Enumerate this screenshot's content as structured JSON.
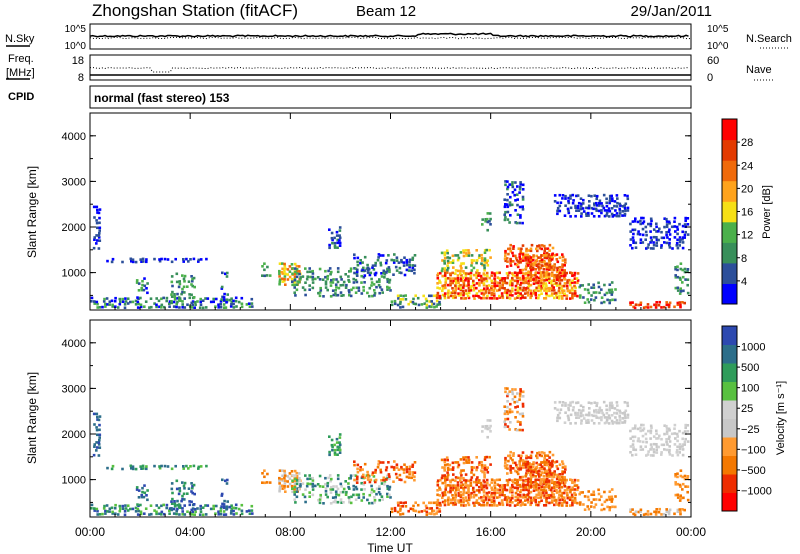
{
  "header": {
    "title": "Zhongshan Station (fitACF)",
    "beam": "Beam 12",
    "date": "29/Jan/2011"
  },
  "top_panels": {
    "nsky_label": "N.Sky",
    "nsky_ticks": [
      "10^5",
      "10^0"
    ],
    "nsearch_label": "N.Search",
    "nsearch_ticks": [
      "10^5",
      "10^0"
    ],
    "freq_label_1": "Freq.",
    "freq_label_2": "[MHz]",
    "freq_ticks": [
      "18",
      "8"
    ],
    "nave_label": "Nave",
    "nave_ticks": [
      "60",
      "0"
    ],
    "cpid_label": "CPID",
    "cpid_text": "normal (fast stereo) 153"
  },
  "colors": {
    "power_scale": [
      "#0000ff",
      "#2c4f9a",
      "#388f5a",
      "#4bb04b",
      "#f6e016",
      "#ffa31c",
      "#f06a0a",
      "#e33a00",
      "#ff0000"
    ],
    "velocity_scale": [
      "#ff0000",
      "#ee2c00",
      "#f47800",
      "#ff9a30",
      "#c8c8c8",
      "#d0d0d0",
      "#58c040",
      "#2f9c5a",
      "#2c6e8a",
      "#2d49b0"
    ]
  },
  "chart_data": [
    {
      "type": "heatmap",
      "name": "power",
      "ylabel": "Slant Range [km]",
      "yticks": [
        "4000",
        "3000",
        "2000",
        "1000"
      ],
      "ylim": [
        180,
        4500
      ],
      "xlim": [
        0,
        24
      ],
      "colorbar_label": "Power [dB]",
      "colorbar_ticks": [
        "28",
        "24",
        "20",
        "16",
        "12",
        "8",
        "4"
      ]
    },
    {
      "type": "heatmap",
      "name": "velocity",
      "ylabel": "Slant Range [km]",
      "yticks": [
        "4000",
        "3000",
        "2000",
        "1000"
      ],
      "ylim": [
        180,
        4500
      ],
      "xlim": [
        0,
        24
      ],
      "xlabel": "Time UT",
      "xticks": [
        "00:00",
        "04:00",
        "08:00",
        "12:00",
        "16:00",
        "20:00",
        "00:00"
      ],
      "colorbar_label": "Velocity [m s⁻¹]",
      "colorbar_ticks": [
        "1000",
        "500",
        "100",
        "25",
        "−25",
        "−100",
        "−500",
        "−1000"
      ]
    }
  ]
}
